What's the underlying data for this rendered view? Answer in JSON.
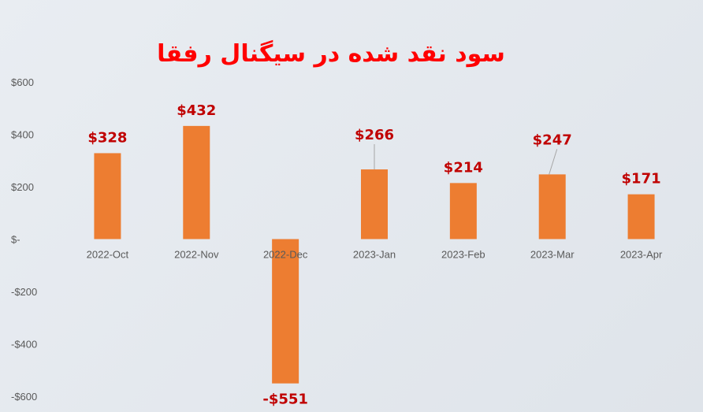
{
  "chart_data": {
    "type": "bar",
    "title": "سود نقد شده در سیگنال رفقا",
    "categories": [
      "2022-Oct",
      "2022-Nov",
      "2022-Dec",
      "2023-Jan",
      "2023-Feb",
      "2023-Mar",
      "2023-Apr"
    ],
    "values": [
      328,
      432,
      -551,
      266,
      214,
      247,
      171
    ],
    "data_labels": [
      "$328",
      "$432",
      "-$551",
      "$266",
      "$214",
      "$247",
      "$171"
    ],
    "ylim": [
      -600,
      600
    ],
    "yticks": [
      600,
      400,
      200,
      0,
      -200,
      -400,
      -600
    ],
    "ytick_labels": [
      "$600",
      "$400",
      "$200",
      "$-",
      "-$200",
      "-$400",
      "-$600"
    ],
    "grid": false,
    "legend": "none"
  },
  "colors": {
    "bar": "#ed7d31",
    "data_label": "#c00000",
    "title": "#ff0000",
    "tick": "#595959",
    "leader_line": "#a6a6a6"
  }
}
